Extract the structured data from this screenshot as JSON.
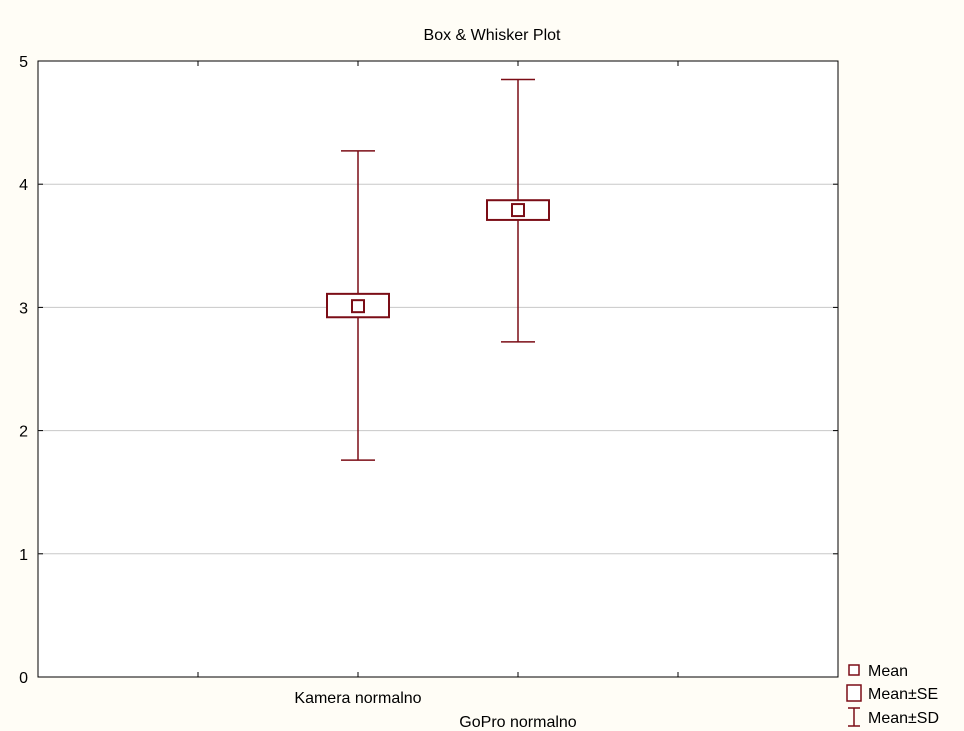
{
  "chart_data": {
    "type": "box",
    "title": "Box & Whisker Plot",
    "xlabel": "",
    "ylabel": "",
    "ylim": [
      0,
      5
    ],
    "yticks": [
      "0",
      "1",
      "2",
      "3",
      "4",
      "5"
    ],
    "grid": true,
    "categories": [
      "Kamera normalno",
      "GoPro normalno"
    ],
    "series": [
      {
        "name": "Kamera normalno",
        "mean": 3.01,
        "se_low": 2.92,
        "se_high": 3.11,
        "sd_low": 1.76,
        "sd_high": 4.27
      },
      {
        "name": "GoPro normalno",
        "mean": 3.79,
        "se_low": 3.71,
        "se_high": 3.87,
        "sd_low": 2.72,
        "sd_high": 4.85
      }
    ],
    "legend": {
      "position": "bottom-right",
      "items": [
        {
          "label": "Mean",
          "symbol": "square"
        },
        {
          "label": "Mean±SE",
          "symbol": "box"
        },
        {
          "label": "Mean±SD",
          "symbol": "whisker"
        }
      ]
    },
    "color": "#7b0d16"
  }
}
